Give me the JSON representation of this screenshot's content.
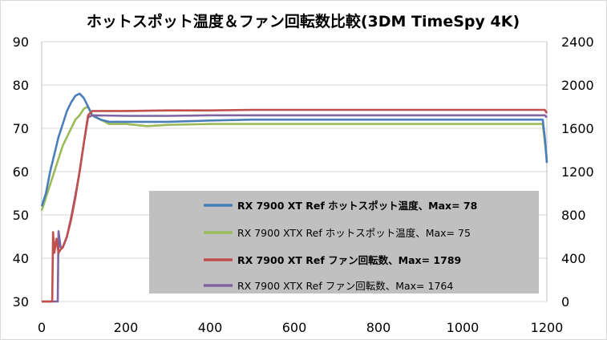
{
  "chart_data": {
    "type": "line",
    "title": "ホットスポット温度＆ファン回転数比較(3DM TimeSpy 4K)",
    "xlim": [
      0,
      1200
    ],
    "x_ticks": [
      "0",
      "200",
      "400",
      "600",
      "800",
      "1000",
      "1200"
    ],
    "y_left": {
      "ylim": [
        30,
        90
      ],
      "ticks": [
        "30",
        "40",
        "50",
        "60",
        "70",
        "80",
        "90"
      ]
    },
    "y_right": {
      "ylim": [
        0,
        2400
      ],
      "ticks": [
        "0",
        "400",
        "800",
        "1200",
        "1600",
        "2000",
        "2400"
      ]
    },
    "grid": "horizontal",
    "legend_position": "lower-right inside plot",
    "legend_background": "#c0c0c0",
    "series": [
      {
        "name": "RX 7900 XT Ref ホットスポット温度、Max= 78",
        "axis": "left",
        "color": "#4a7ebb",
        "bold": true,
        "points": [
          [
            0,
            52
          ],
          [
            10,
            55
          ],
          [
            20,
            60
          ],
          [
            30,
            64
          ],
          [
            40,
            68
          ],
          [
            50,
            71
          ],
          [
            60,
            74
          ],
          [
            70,
            76
          ],
          [
            80,
            77.5
          ],
          [
            90,
            78
          ],
          [
            100,
            77
          ],
          [
            110,
            75
          ],
          [
            120,
            73
          ],
          [
            140,
            72
          ],
          [
            160,
            71.5
          ],
          [
            200,
            71.5
          ],
          [
            300,
            71.5
          ],
          [
            400,
            71.8
          ],
          [
            500,
            72
          ],
          [
            600,
            72
          ],
          [
            700,
            72
          ],
          [
            800,
            72
          ],
          [
            900,
            72
          ],
          [
            1000,
            72
          ],
          [
            1100,
            72
          ],
          [
            1190,
            72
          ],
          [
            1195,
            68
          ],
          [
            1200,
            62
          ]
        ]
      },
      {
        "name": "RX 7900 XTX Ref ホットスポット温度、Max= 75",
        "axis": "left",
        "color": "#9bbb59",
        "bold": false,
        "points": [
          [
            0,
            51
          ],
          [
            10,
            54
          ],
          [
            20,
            57
          ],
          [
            30,
            60
          ],
          [
            40,
            63
          ],
          [
            50,
            66
          ],
          [
            60,
            68
          ],
          [
            70,
            70
          ],
          [
            80,
            72
          ],
          [
            90,
            73
          ],
          [
            100,
            74.5
          ],
          [
            110,
            75
          ],
          [
            120,
            73
          ],
          [
            140,
            72
          ],
          [
            160,
            71
          ],
          [
            200,
            71
          ],
          [
            250,
            70.5
          ],
          [
            300,
            70.8
          ],
          [
            400,
            71
          ],
          [
            500,
            71
          ],
          [
            600,
            71
          ],
          [
            700,
            71
          ],
          [
            800,
            71
          ],
          [
            900,
            71
          ],
          [
            1000,
            71
          ],
          [
            1100,
            71
          ],
          [
            1190,
            71
          ],
          [
            1195,
            67
          ],
          [
            1200,
            63
          ]
        ]
      },
      {
        "name": "RX 7900 XT Ref ファン回転数、Max= 1789",
        "axis": "right",
        "color": "#c0504d",
        "bold": true,
        "points": [
          [
            0,
            0
          ],
          [
            20,
            0
          ],
          [
            25,
            0
          ],
          [
            27,
            640
          ],
          [
            30,
            450
          ],
          [
            35,
            580
          ],
          [
            40,
            450
          ],
          [
            45,
            480
          ],
          [
            50,
            500
          ],
          [
            60,
            600
          ],
          [
            70,
            760
          ],
          [
            80,
            960
          ],
          [
            90,
            1200
          ],
          [
            100,
            1460
          ],
          [
            110,
            1720
          ],
          [
            120,
            1760
          ],
          [
            200,
            1760
          ],
          [
            300,
            1765
          ],
          [
            400,
            1765
          ],
          [
            500,
            1770
          ],
          [
            600,
            1770
          ],
          [
            700,
            1770
          ],
          [
            800,
            1770
          ],
          [
            900,
            1770
          ],
          [
            1000,
            1770
          ],
          [
            1100,
            1770
          ],
          [
            1195,
            1770
          ],
          [
            1200,
            1740
          ]
        ]
      },
      {
        "name": "RX 7900 XTX Ref ファン回転数、Max= 1764",
        "axis": "right",
        "color": "#8064a2",
        "bold": false,
        "points": [
          [
            0,
            0
          ],
          [
            35,
            0
          ],
          [
            38,
            0
          ],
          [
            40,
            650
          ],
          [
            45,
            500
          ],
          [
            50,
            500
          ],
          [
            60,
            600
          ],
          [
            70,
            780
          ],
          [
            80,
            980
          ],
          [
            90,
            1200
          ],
          [
            100,
            1460
          ],
          [
            110,
            1700
          ],
          [
            120,
            1720
          ],
          [
            200,
            1715
          ],
          [
            300,
            1715
          ],
          [
            400,
            1720
          ],
          [
            500,
            1720
          ],
          [
            600,
            1720
          ],
          [
            700,
            1720
          ],
          [
            800,
            1720
          ],
          [
            900,
            1720
          ],
          [
            1000,
            1720
          ],
          [
            1100,
            1720
          ],
          [
            1195,
            1720
          ],
          [
            1200,
            1700
          ]
        ]
      }
    ]
  }
}
